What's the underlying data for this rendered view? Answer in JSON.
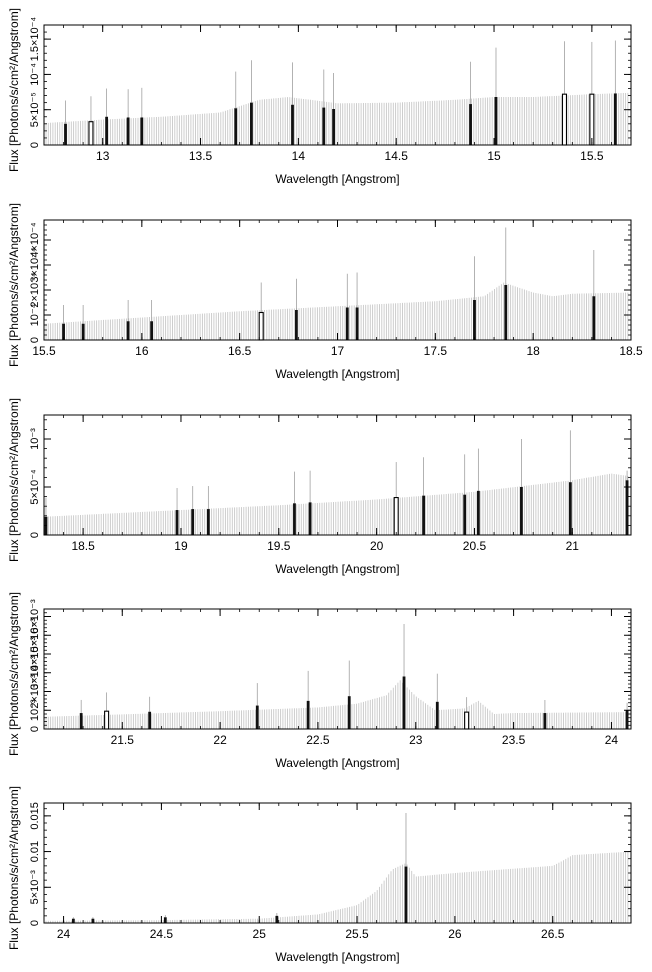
{
  "chart_data": [
    {
      "type": "bar",
      "xlabel": "Wavelength [Angstrom]",
      "ylabel": "Flux [Photons/s/cm²/Angstrom]",
      "xlim": [
        12.7,
        15.7
      ],
      "ylim": [
        0,
        0.00017
      ],
      "xticks": [
        "13",
        "13.5",
        "14",
        "14.5",
        "15",
        "15.5"
      ],
      "xtick_values": [
        13,
        13.5,
        14,
        14.5,
        15,
        15.5
      ],
      "yticks": [
        "0",
        "5×10⁻⁵",
        "10⁻⁴",
        "1.5×10⁻⁴"
      ],
      "ytick_values": [
        0,
        5e-05,
        0.0001,
        0.00015
      ],
      "continuum": {
        "x": [
          12.7,
          13.0,
          13.3,
          13.6,
          13.8,
          13.95,
          14.2,
          14.5,
          14.8,
          15.0,
          15.2,
          15.5,
          15.7
        ],
        "y": [
          3.1e-05,
          3.6e-05,
          4e-05,
          4.6e-05,
          6.4e-05,
          6.8e-05,
          5.9e-05,
          6e-05,
          6.4e-05,
          6.8e-05,
          6.8e-05,
          7.2e-05,
          7.4e-05
        ]
      },
      "lines": [
        {
          "x": 12.81,
          "y": 3e-05,
          "err": 3.3e-05,
          "style": "filled"
        },
        {
          "x": 12.94,
          "y": 3.3e-05,
          "err": 3.6e-05,
          "style": "open"
        },
        {
          "x": 13.02,
          "y": 4e-05,
          "err": 4e-05,
          "style": "filled"
        },
        {
          "x": 13.13,
          "y": 3.9e-05,
          "err": 4e-05,
          "style": "filled"
        },
        {
          "x": 13.2,
          "y": 3.9e-05,
          "err": 4.2e-05,
          "style": "filled"
        },
        {
          "x": 13.68,
          "y": 5.2e-05,
          "err": 5.2e-05,
          "style": "filled"
        },
        {
          "x": 13.76,
          "y": 6e-05,
          "err": 6e-05,
          "style": "filled"
        },
        {
          "x": 13.97,
          "y": 5.7e-05,
          "err": 6e-05,
          "style": "filled"
        },
        {
          "x": 14.13,
          "y": 5.3e-05,
          "err": 5.4e-05,
          "style": "filled"
        },
        {
          "x": 14.18,
          "y": 5.1e-05,
          "err": 5.1e-05,
          "style": "filled"
        },
        {
          "x": 14.88,
          "y": 5.8e-05,
          "err": 6e-05,
          "style": "filled"
        },
        {
          "x": 15.01,
          "y": 6.8e-05,
          "err": 7e-05,
          "style": "filled"
        },
        {
          "x": 15.36,
          "y": 7.2e-05,
          "err": 7.5e-05,
          "style": "open"
        },
        {
          "x": 15.5,
          "y": 7.2e-05,
          "err": 7.4e-05,
          "style": "open"
        },
        {
          "x": 15.62,
          "y": 7.3e-05,
          "err": 7.5e-05,
          "style": "filled"
        }
      ]
    },
    {
      "type": "bar",
      "xlabel": "Wavelength [Angstrom]",
      "ylabel": "Flux [Photons/s/cm²/Angstrom]",
      "xlim": [
        15.5,
        18.5
      ],
      "ylim": [
        0,
        0.00048
      ],
      "xticks": [
        "15.5",
        "16",
        "16.5",
        "17",
        "17.5",
        "18",
        "18.5"
      ],
      "xtick_values": [
        15.5,
        16,
        16.5,
        17,
        17.5,
        18,
        18.5
      ],
      "yticks": [
        "0",
        "10⁻⁴",
        "2×10⁻⁴",
        "3×10⁻⁴",
        "4×10⁻⁴"
      ],
      "ytick_values": [
        0,
        0.0001,
        0.0002,
        0.0003,
        0.0004
      ],
      "continuum": {
        "x": [
          15.5,
          16.0,
          16.5,
          17.0,
          17.5,
          17.75,
          17.85,
          18.0,
          18.1,
          18.2,
          18.5
        ],
        "y": [
          6.5e-05,
          9e-05,
          0.000115,
          0.000135,
          0.000155,
          0.000175,
          0.00023,
          0.00019,
          0.000175,
          0.000185,
          0.00019
        ]
      },
      "lines": [
        {
          "x": 15.6,
          "y": 6.5e-05,
          "err": 7.5e-05,
          "style": "filled"
        },
        {
          "x": 15.7,
          "y": 6.5e-05,
          "err": 7.5e-05,
          "style": "filled"
        },
        {
          "x": 15.93,
          "y": 7.5e-05,
          "err": 8.5e-05,
          "style": "filled"
        },
        {
          "x": 16.05,
          "y": 7.5e-05,
          "err": 8.5e-05,
          "style": "filled"
        },
        {
          "x": 16.61,
          "y": 0.00011,
          "err": 0.00012,
          "style": "open"
        },
        {
          "x": 16.79,
          "y": 0.00012,
          "err": 0.000125,
          "style": "filled"
        },
        {
          "x": 17.05,
          "y": 0.00013,
          "err": 0.000135,
          "style": "filled"
        },
        {
          "x": 17.1,
          "y": 0.00013,
          "err": 0.00014,
          "style": "filled"
        },
        {
          "x": 17.7,
          "y": 0.00016,
          "err": 0.000175,
          "style": "filled"
        },
        {
          "x": 17.86,
          "y": 0.00022,
          "err": 0.00023,
          "style": "filled"
        },
        {
          "x": 18.31,
          "y": 0.000175,
          "err": 0.000185,
          "style": "filled"
        }
      ]
    },
    {
      "type": "bar",
      "xlabel": "Wavelength [Angstrom]",
      "ylabel": "Flux [Photons/s/cm²/Angstrom]",
      "xlim": [
        18.3,
        21.3
      ],
      "ylim": [
        0,
        0.00125
      ],
      "xticks": [
        "18.5",
        "19",
        "19.5",
        "20",
        "20.5",
        "21"
      ],
      "xtick_values": [
        18.5,
        19,
        19.5,
        20,
        20.5,
        21
      ],
      "yticks": [
        "0",
        "5×10⁻⁴",
        "10⁻³"
      ],
      "ytick_values": [
        0,
        0.0005,
        0.001
      ],
      "continuum": {
        "x": [
          18.3,
          18.5,
          19.0,
          19.5,
          20.0,
          20.5,
          21.0,
          21.2,
          21.3
        ],
        "y": [
          0.00019,
          0.00021,
          0.00026,
          0.00031,
          0.00037,
          0.00045,
          0.00057,
          0.00064,
          0.00061
        ]
      },
      "lines": [
        {
          "x": 18.31,
          "y": 0.00019,
          "err": 0.0002,
          "style": "filled"
        },
        {
          "x": 18.98,
          "y": 0.00026,
          "err": 0.00023,
          "style": "filled"
        },
        {
          "x": 19.06,
          "y": 0.00027,
          "err": 0.00024,
          "style": "filled"
        },
        {
          "x": 19.14,
          "y": 0.00027,
          "err": 0.00024,
          "style": "filled"
        },
        {
          "x": 19.58,
          "y": 0.00033,
          "err": 0.00033,
          "style": "filled"
        },
        {
          "x": 19.66,
          "y": 0.00034,
          "err": 0.00033,
          "style": "filled"
        },
        {
          "x": 20.1,
          "y": 0.00039,
          "err": 0.00037,
          "style": "open"
        },
        {
          "x": 20.24,
          "y": 0.00041,
          "err": 0.0004,
          "style": "filled"
        },
        {
          "x": 20.45,
          "y": 0.00042,
          "err": 0.00042,
          "style": "filled"
        },
        {
          "x": 20.52,
          "y": 0.00046,
          "err": 0.00044,
          "style": "filled"
        },
        {
          "x": 20.74,
          "y": 0.0005,
          "err": 0.0005,
          "style": "filled"
        },
        {
          "x": 20.99,
          "y": 0.00055,
          "err": 0.00054,
          "style": "filled"
        },
        {
          "x": 21.28,
          "y": 0.00057,
          "err": 0.0001,
          "style": "filled"
        }
      ]
    },
    {
      "type": "bar",
      "xlabel": "Wavelength [Angstrom]",
      "ylabel": "Flux [Photons/s/cm²/Angstrom]",
      "xlim": [
        21.1,
        24.1
      ],
      "ylim": [
        0,
        0.0064
      ],
      "xticks": [
        "21.5",
        "22",
        "22.5",
        "23",
        "23.5",
        "24"
      ],
      "xtick_values": [
        21.5,
        22,
        22.5,
        23,
        23.5,
        24
      ],
      "yticks": [
        "0",
        "10⁻³",
        "2×10⁻³",
        "3×10⁻³",
        "4×10⁻³",
        "5×10⁻³",
        "6×10⁻³"
      ],
      "ytick_values": [
        0,
        0.001,
        0.002,
        0.003,
        0.004,
        0.005,
        0.006
      ],
      "continuum": {
        "x": [
          21.1,
          21.5,
          22.0,
          22.5,
          22.7,
          22.85,
          22.92,
          23.0,
          23.1,
          23.25,
          23.32,
          23.4,
          23.5,
          24.1
        ],
        "y": [
          0.00065,
          0.00078,
          0.00095,
          0.00115,
          0.00135,
          0.0018,
          0.0026,
          0.00175,
          0.001,
          0.0011,
          0.0015,
          0.0008,
          0.00085,
          0.0009
        ]
      },
      "lines": [
        {
          "x": 21.29,
          "y": 0.00085,
          "err": 0.0007,
          "style": "filled"
        },
        {
          "x": 21.42,
          "y": 0.00095,
          "err": 0.001,
          "style": "open"
        },
        {
          "x": 21.64,
          "y": 0.00092,
          "err": 0.0008,
          "style": "filled"
        },
        {
          "x": 22.19,
          "y": 0.00125,
          "err": 0.0012,
          "style": "filled"
        },
        {
          "x": 22.45,
          "y": 0.0015,
          "err": 0.0016,
          "style": "filled"
        },
        {
          "x": 22.66,
          "y": 0.00175,
          "err": 0.0019,
          "style": "filled"
        },
        {
          "x": 22.94,
          "y": 0.0028,
          "err": 0.0028,
          "style": "filled"
        },
        {
          "x": 23.11,
          "y": 0.00145,
          "err": 0.0015,
          "style": "filled"
        },
        {
          "x": 23.26,
          "y": 0.0009,
          "err": 0.0008,
          "style": "open"
        },
        {
          "x": 23.66,
          "y": 0.00085,
          "err": 0.0007,
          "style": "filled"
        },
        {
          "x": 24.08,
          "y": 0.001,
          "err": 0.0004,
          "style": "filled"
        }
      ]
    },
    {
      "type": "bar",
      "xlabel": "Wavelength [Angstrom]",
      "ylabel": "Flux [Photons/s/cm²/Angstrom]",
      "xlim": [
        23.9,
        26.9
      ],
      "ylim": [
        0,
        0.0168
      ],
      "xticks": [
        "24",
        "24.5",
        "25",
        "25.5",
        "26",
        "26.5"
      ],
      "xtick_values": [
        24,
        24.5,
        25,
        25.5,
        26,
        26.5
      ],
      "yticks": [
        "0",
        "5×10⁻³",
        "0.01",
        "0.015"
      ],
      "ytick_values": [
        0,
        0.005,
        0.01,
        0.015
      ],
      "continuum": {
        "x": [
          23.9,
          24.5,
          25.0,
          25.3,
          25.5,
          25.6,
          25.68,
          25.75,
          25.8,
          26.0,
          26.5,
          26.55,
          26.6,
          26.9
        ],
        "y": [
          0.0003,
          0.0004,
          0.0006,
          0.0012,
          0.0025,
          0.0045,
          0.0075,
          0.0084,
          0.0065,
          0.007,
          0.008,
          0.0087,
          0.0095,
          0.01
        ]
      },
      "lines": [
        {
          "x": 24.05,
          "y": 0.0006,
          "err": 0.0002,
          "style": "filled"
        },
        {
          "x": 24.15,
          "y": 0.0006,
          "err": 0.0002,
          "style": "filled"
        },
        {
          "x": 24.52,
          "y": 0.0008,
          "err": 0.0003,
          "style": "filled"
        },
        {
          "x": 25.09,
          "y": 0.001,
          "err": 0.0004,
          "style": "filled"
        },
        {
          "x": 25.75,
          "y": 0.0079,
          "err": 0.0075,
          "style": "filled"
        }
      ]
    }
  ]
}
